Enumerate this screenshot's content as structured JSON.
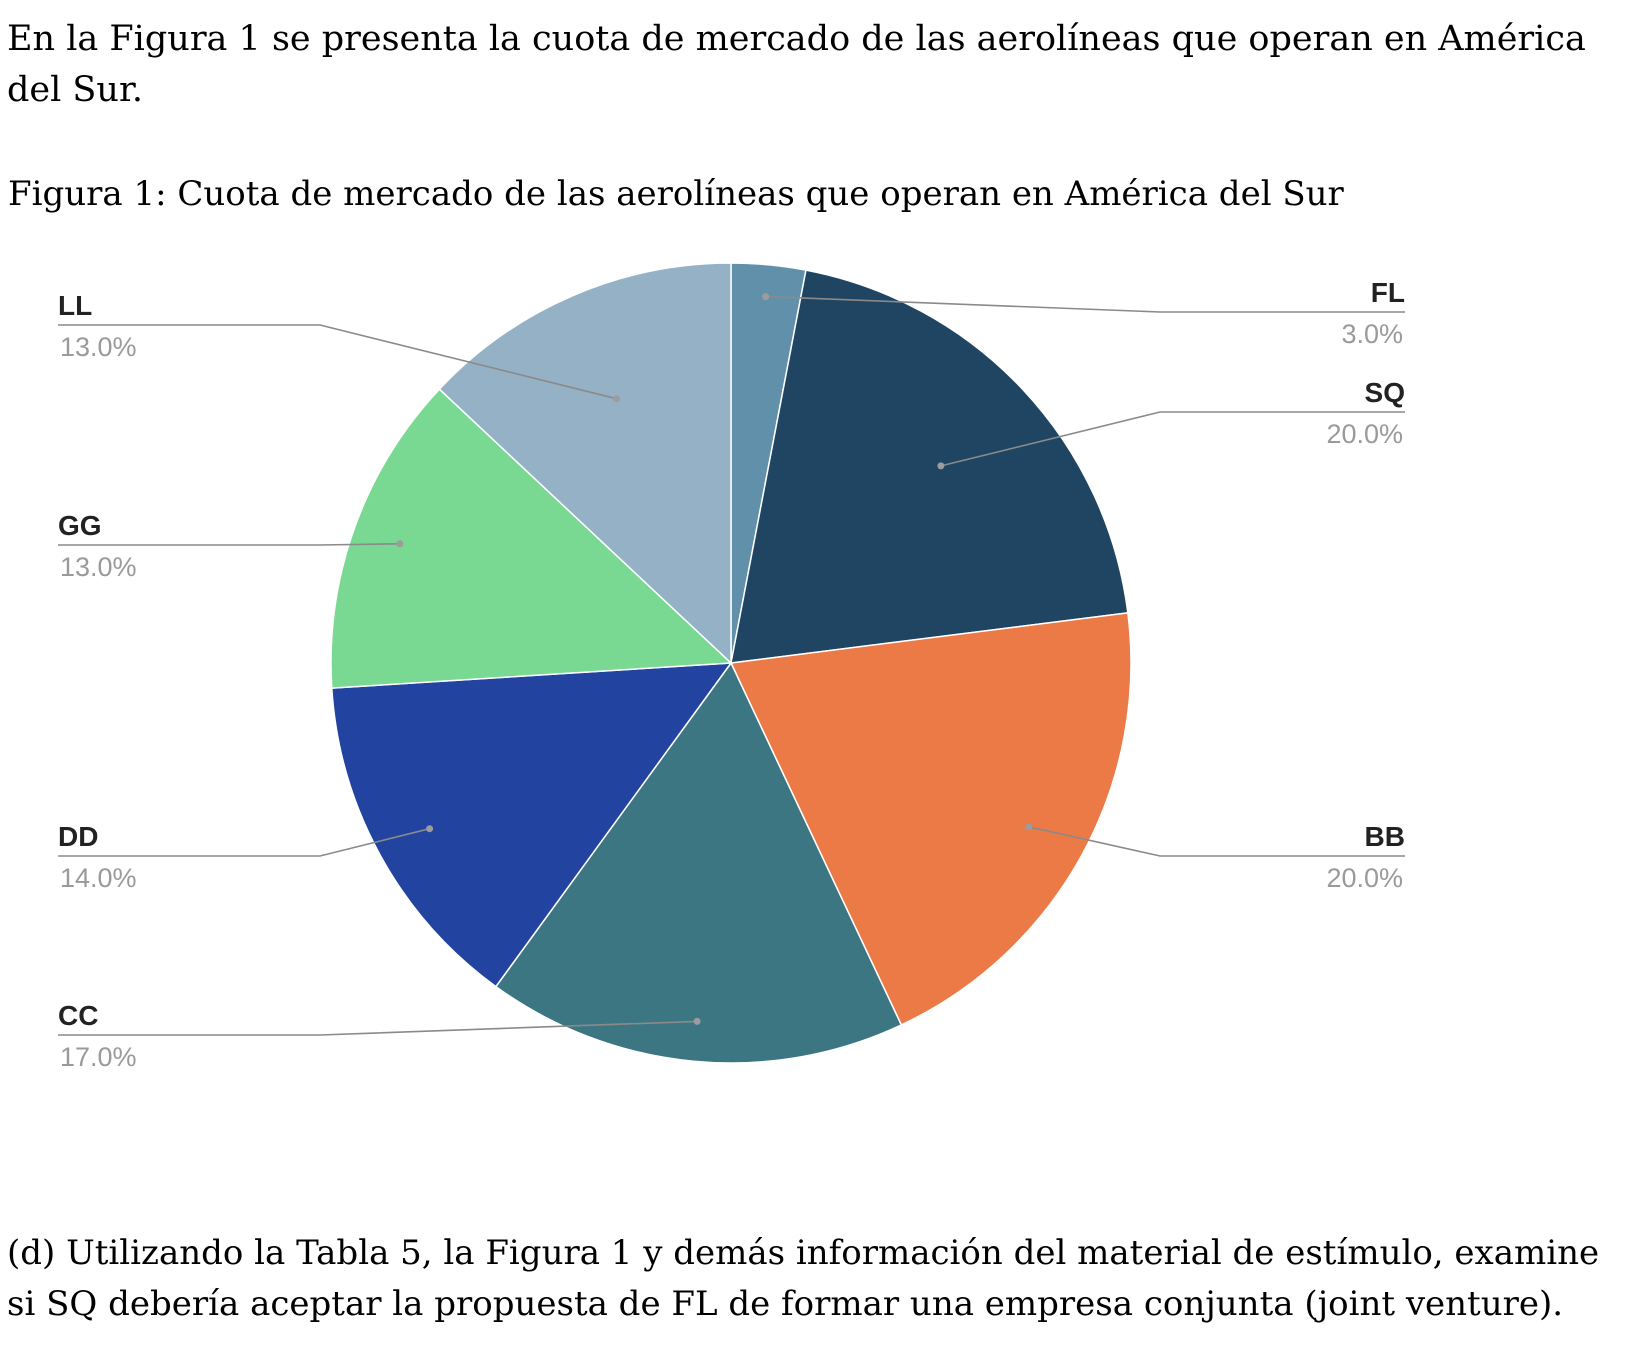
{
  "intro_text": "En la Figura 1 se presenta la cuota de mercado de las aerolíneas que operan en América del Sur.",
  "figure_title": "Figura 1: Cuota de mercado de las aerolíneas que operan en América del Sur",
  "question_text": "(d) Utilizando la Tabla 5, la Figura 1 y demás información del material de estímulo, examine si SQ debería aceptar la propuesta de FL de formar una empresa conjunta (joint venture).",
  "chart_data": {
    "type": "pie",
    "start": "12 o'clock",
    "direction": "clockwise",
    "slices": [
      {
        "label": "FL",
        "value": 3.0,
        "value_label": "3.0%",
        "color": "#6190ab"
      },
      {
        "label": "SQ",
        "value": 20.0,
        "value_label": "20.0%",
        "color": "#1f4562"
      },
      {
        "label": "BB",
        "value": 20.0,
        "value_label": "20.0%",
        "color": "#ec7a47"
      },
      {
        "label": "CC",
        "value": 17.0,
        "value_label": "17.0%",
        "color": "#3c7683"
      },
      {
        "label": "DD",
        "value": 14.0,
        "value_label": "14.0%",
        "color": "#2244a0"
      },
      {
        "label": "GG",
        "value": 13.0,
        "value_label": "13.0%",
        "color": "#79d891"
      },
      {
        "label": "LL",
        "value": 13.0,
        "value_label": "13.0%",
        "color": "#94b1c6"
      }
    ],
    "leader_line_color": "#8a8a8a"
  }
}
